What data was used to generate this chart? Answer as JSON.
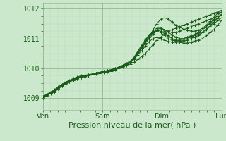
{
  "bg_color": "#cce8cc",
  "grid_major_color": "#8fbc8f",
  "grid_minor_color": "#b8d8b8",
  "line_color": "#1a5c1a",
  "marker": "+",
  "markersize": 3,
  "linewidth": 0.7,
  "ylim": [
    1008.6,
    1012.2
  ],
  "yticks": [
    1009,
    1010,
    1011,
    1012
  ],
  "xtick_positions": [
    0,
    1,
    2,
    3
  ],
  "xtick_labels": [
    "Ven",
    "Sam",
    "Dim",
    "Lun"
  ],
  "xlabel": "Pression niveau de la mer( hPa )",
  "xlabel_fontsize": 8,
  "tick_fontsize": 7,
  "series": [
    [
      1009.05,
      1009.1,
      1009.15,
      1009.2,
      1009.3,
      1009.4,
      1009.5,
      1009.55,
      1009.6,
      1009.65,
      1009.7,
      1009.72,
      1009.75,
      1009.78,
      1009.8,
      1009.82,
      1009.85,
      1009.87,
      1009.9,
      1009.95,
      1010.0,
      1010.05,
      1010.1,
      1010.15,
      1010.2,
      1010.3,
      1010.4,
      1010.5,
      1010.65,
      1010.8,
      1010.95,
      1011.05,
      1011.15,
      1011.25,
      1011.3,
      1011.35,
      1011.4,
      1011.45,
      1011.5,
      1011.55,
      1011.6,
      1011.65,
      1011.7,
      1011.75,
      1011.8,
      1011.85,
      1011.9,
      1011.95
    ],
    [
      1009.05,
      1009.12,
      1009.18,
      1009.24,
      1009.32,
      1009.4,
      1009.48,
      1009.54,
      1009.6,
      1009.65,
      1009.7,
      1009.73,
      1009.77,
      1009.8,
      1009.83,
      1009.86,
      1009.9,
      1009.93,
      1009.96,
      1010.0,
      1010.05,
      1010.1,
      1010.15,
      1010.2,
      1010.3,
      1010.45,
      1010.6,
      1010.75,
      1010.9,
      1011.0,
      1011.05,
      1011.0,
      1010.95,
      1010.9,
      1010.88,
      1010.88,
      1010.9,
      1010.92,
      1010.95,
      1011.0,
      1011.05,
      1011.1,
      1011.2,
      1011.3,
      1011.4,
      1011.5,
      1011.6,
      1011.7
    ],
    [
      1009.0,
      1009.08,
      1009.16,
      1009.24,
      1009.33,
      1009.42,
      1009.5,
      1009.56,
      1009.62,
      1009.67,
      1009.72,
      1009.74,
      1009.77,
      1009.79,
      1009.82,
      1009.85,
      1009.88,
      1009.9,
      1009.93,
      1009.97,
      1010.02,
      1010.07,
      1010.12,
      1010.2,
      1010.3,
      1010.5,
      1010.7,
      1010.9,
      1011.1,
      1011.25,
      1011.35,
      1011.35,
      1011.25,
      1011.1,
      1011.0,
      1010.92,
      1010.88,
      1010.85,
      1010.85,
      1010.88,
      1010.92,
      1010.95,
      1011.0,
      1011.1,
      1011.2,
      1011.3,
      1011.45,
      1011.6
    ],
    [
      1009.02,
      1009.1,
      1009.18,
      1009.26,
      1009.35,
      1009.44,
      1009.52,
      1009.57,
      1009.63,
      1009.68,
      1009.72,
      1009.74,
      1009.77,
      1009.8,
      1009.83,
      1009.86,
      1009.88,
      1009.91,
      1009.94,
      1009.97,
      1010.02,
      1010.08,
      1010.15,
      1010.22,
      1010.35,
      1010.55,
      1010.75,
      1010.95,
      1011.1,
      1011.2,
      1011.25,
      1011.2,
      1011.1,
      1011.0,
      1010.95,
      1010.93,
      1010.95,
      1011.0,
      1011.05,
      1011.1,
      1011.15,
      1011.2,
      1011.3,
      1011.4,
      1011.5,
      1011.6,
      1011.7,
      1011.8
    ],
    [
      1009.0,
      1009.08,
      1009.17,
      1009.25,
      1009.33,
      1009.42,
      1009.5,
      1009.56,
      1009.61,
      1009.66,
      1009.71,
      1009.74,
      1009.77,
      1009.8,
      1009.83,
      1009.86,
      1009.89,
      1009.92,
      1009.95,
      1009.99,
      1010.03,
      1010.08,
      1010.14,
      1010.2,
      1010.32,
      1010.5,
      1010.68,
      1010.85,
      1011.0,
      1011.15,
      1011.25,
      1011.3,
      1011.3,
      1011.25,
      1011.2,
      1011.2,
      1011.25,
      1011.3,
      1011.35,
      1011.4,
      1011.45,
      1011.5,
      1011.55,
      1011.6,
      1011.65,
      1011.7,
      1011.75,
      1011.8
    ],
    [
      1009.03,
      1009.11,
      1009.19,
      1009.27,
      1009.36,
      1009.45,
      1009.53,
      1009.58,
      1009.64,
      1009.69,
      1009.73,
      1009.76,
      1009.78,
      1009.81,
      1009.84,
      1009.87,
      1009.9,
      1009.92,
      1009.95,
      1009.99,
      1010.04,
      1010.1,
      1010.17,
      1010.25,
      1010.38,
      1010.58,
      1010.78,
      1010.97,
      1011.12,
      1011.22,
      1011.28,
      1011.25,
      1011.18,
      1011.08,
      1011.0,
      1010.95,
      1010.93,
      1010.95,
      1011.0,
      1011.05,
      1011.1,
      1011.15,
      1011.22,
      1011.32,
      1011.42,
      1011.55,
      1011.68,
      1011.82
    ],
    [
      1009.05,
      1009.13,
      1009.2,
      1009.28,
      1009.37,
      1009.46,
      1009.54,
      1009.6,
      1009.66,
      1009.71,
      1009.75,
      1009.77,
      1009.79,
      1009.81,
      1009.84,
      1009.87,
      1009.9,
      1009.92,
      1009.95,
      1009.98,
      1010.02,
      1010.07,
      1010.13,
      1010.2,
      1010.32,
      1010.5,
      1010.68,
      1010.85,
      1011.05,
      1011.3,
      1011.5,
      1011.65,
      1011.7,
      1011.65,
      1011.55,
      1011.45,
      1011.38,
      1011.32,
      1011.28,
      1011.25,
      1011.25,
      1011.28,
      1011.35,
      1011.45,
      1011.58,
      1011.72,
      1011.85,
      1011.95
    ],
    [
      1009.02,
      1009.1,
      1009.18,
      1009.26,
      1009.35,
      1009.44,
      1009.52,
      1009.58,
      1009.63,
      1009.68,
      1009.72,
      1009.74,
      1009.77,
      1009.8,
      1009.83,
      1009.86,
      1009.88,
      1009.91,
      1009.94,
      1009.97,
      1010.02,
      1010.07,
      1010.13,
      1010.2,
      1010.32,
      1010.52,
      1010.72,
      1010.9,
      1011.05,
      1011.2,
      1011.3,
      1011.35,
      1011.3,
      1011.22,
      1011.12,
      1011.05,
      1011.0,
      1011.0,
      1011.03,
      1011.08,
      1011.13,
      1011.2,
      1011.3,
      1011.4,
      1011.52,
      1011.65,
      1011.78,
      1011.9
    ]
  ]
}
